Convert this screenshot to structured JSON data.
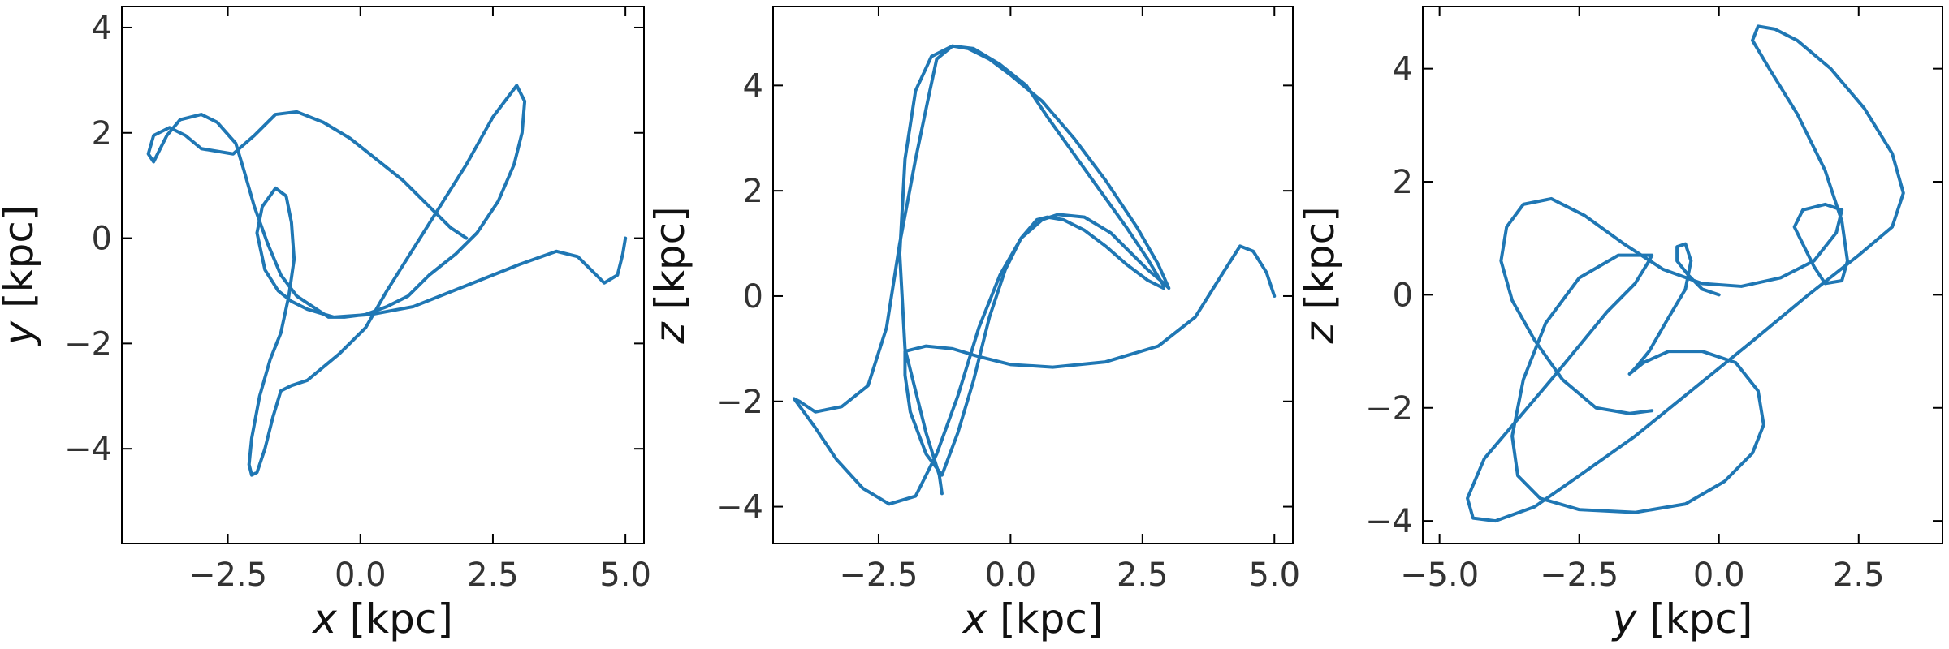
{
  "figure": {
    "line_color": "#1f77b4"
  },
  "chart_data": [
    {
      "type": "line",
      "xlabel": {
        "var": "x",
        "unit": " [kpc]"
      },
      "ylabel": {
        "var": "y",
        "unit": " [kpc]"
      },
      "xlim": [
        -4.5,
        5.35
      ],
      "ylim": [
        -5.8,
        4.4
      ],
      "xticks": [
        -2.5,
        0.0,
        2.5,
        5.0
      ],
      "xtick_labels": [
        "−2.5",
        "0.0",
        "2.5",
        "5.0"
      ],
      "yticks": [
        -4,
        -2,
        0,
        2,
        4
      ],
      "ytick_labels": [
        "−4",
        "−2",
        "0",
        "2",
        "4"
      ],
      "minor_xticks": [],
      "minor_yticks": [],
      "grid": false,
      "series": [
        {
          "x": [
            5.0,
            4.95,
            4.85,
            4.6,
            4.1,
            3.7,
            3.0,
            2.0,
            1.0,
            0.2,
            -0.5,
            -1.0,
            -1.3,
            -1.55,
            -1.8,
            -1.95,
            -1.85,
            -1.6,
            -1.4,
            -1.3,
            -1.25,
            -1.35,
            -1.5,
            -1.7,
            -1.9,
            -2.05,
            -2.1,
            -2.05,
            -1.95,
            -1.8,
            -1.65,
            -1.5,
            -1.3,
            -1.0,
            -0.4,
            0.1,
            0.5,
            1.0,
            1.5,
            2.0,
            2.5,
            2.95,
            3.1,
            3.05,
            2.9,
            2.6,
            2.2,
            1.8,
            1.3,
            0.9,
            0.5,
            0.1,
            -0.3,
            -0.6,
            -0.9,
            -1.2,
            -1.5,
            -1.75,
            -2.0,
            -2.2,
            -2.35,
            -2.7,
            -3.0,
            -3.4,
            -3.65,
            -3.9,
            -4.0,
            -3.9,
            -3.6,
            -3.3,
            -3.0,
            -2.4,
            -2.0,
            -1.6,
            -1.2,
            -0.7,
            -0.2,
            0.3,
            0.8,
            1.3,
            1.7,
            2.0
          ],
          "y": [
            0.0,
            -0.3,
            -0.7,
            -0.85,
            -0.35,
            -0.25,
            -0.5,
            -0.9,
            -1.3,
            -1.45,
            -1.5,
            -1.35,
            -1.2,
            -1.0,
            -0.6,
            0.1,
            0.6,
            0.95,
            0.8,
            0.3,
            -0.4,
            -1.1,
            -1.8,
            -2.3,
            -3.0,
            -3.8,
            -4.3,
            -4.5,
            -4.45,
            -4.0,
            -3.4,
            -2.9,
            -2.8,
            -2.7,
            -2.2,
            -1.7,
            -1.0,
            -0.2,
            0.6,
            1.4,
            2.3,
            2.9,
            2.6,
            2.0,
            1.4,
            0.7,
            0.1,
            -0.3,
            -0.7,
            -1.1,
            -1.3,
            -1.45,
            -1.5,
            -1.5,
            -1.3,
            -1.1,
            -0.7,
            -0.1,
            0.6,
            1.3,
            1.8,
            2.2,
            2.35,
            2.25,
            1.95,
            1.45,
            1.6,
            1.95,
            2.1,
            1.95,
            1.7,
            1.6,
            1.95,
            2.35,
            2.4,
            2.2,
            1.9,
            1.5,
            1.1,
            0.6,
            0.2,
            0.0
          ]
        }
      ]
    },
    {
      "type": "line",
      "xlabel": {
        "var": "x",
        "unit": " [kpc]"
      },
      "ylabel": {
        "var": "z",
        "unit": " [kpc]"
      },
      "xlim": [
        -4.5,
        5.35
      ],
      "ylim": [
        -4.7,
        5.5
      ],
      "xticks": [
        -2.5,
        0.0,
        2.5,
        5.0
      ],
      "xtick_labels": [
        "−2.5",
        "0.0",
        "2.5",
        "5.0"
      ],
      "yticks": [
        -4,
        -2,
        0,
        2,
        4
      ],
      "ytick_labels": [
        "−4",
        "−2",
        "0",
        "2",
        "4"
      ],
      "minor_xticks": [],
      "minor_yticks": [],
      "grid": false,
      "series": [
        {
          "x": [
            5.0,
            4.85,
            4.6,
            4.35,
            4.0,
            3.5,
            2.8,
            1.8,
            0.8,
            0.0,
            -0.6,
            -1.1,
            -1.6,
            -2.0,
            -2.0,
            -1.9,
            -1.6,
            -1.3,
            -1.0,
            -0.7,
            -0.4,
            -0.1,
            0.2,
            0.5,
            0.7,
            1.0,
            1.4,
            1.8,
            2.2,
            2.6,
            2.9,
            2.9,
            2.6,
            2.2,
            1.7,
            1.2,
            0.7,
            0.3,
            -0.2,
            -0.7,
            -1.1,
            -1.4,
            -1.55,
            -1.8,
            -2.1,
            -2.35,
            -2.7,
            -3.2,
            -3.7,
            -4.0,
            -4.1,
            -3.7,
            -3.3,
            -2.8,
            -2.3,
            -1.8,
            -1.4,
            -1.0,
            -0.6,
            -0.2,
            0.2,
            0.6,
            0.9,
            1.4,
            1.9,
            2.3,
            2.6,
            2.9,
            3.0,
            2.8,
            2.4,
            1.8,
            1.2,
            0.6,
            0.0,
            -0.4,
            -0.8,
            -1.1,
            -1.5,
            -1.8,
            -2.0,
            -2.1,
            -2.0,
            -1.6,
            -1.35,
            -1.3
          ],
          "y": [
            0.0,
            0.45,
            0.85,
            0.95,
            0.4,
            -0.4,
            -0.95,
            -1.25,
            -1.35,
            -1.3,
            -1.15,
            -1.0,
            -0.95,
            -1.05,
            -1.5,
            -2.2,
            -3.0,
            -3.4,
            -2.6,
            -1.6,
            -0.4,
            0.5,
            1.1,
            1.45,
            1.5,
            1.45,
            1.25,
            0.95,
            0.6,
            0.3,
            0.15,
            0.2,
            0.7,
            1.3,
            2.0,
            2.7,
            3.4,
            4.0,
            4.4,
            4.7,
            4.75,
            4.5,
            3.8,
            2.6,
            1.0,
            -0.6,
            -1.7,
            -2.1,
            -2.2,
            -2.0,
            -1.95,
            -2.5,
            -3.1,
            -3.65,
            -3.95,
            -3.8,
            -3.0,
            -1.9,
            -0.6,
            0.4,
            1.1,
            1.45,
            1.55,
            1.5,
            1.2,
            0.8,
            0.5,
            0.25,
            0.15,
            0.6,
            1.3,
            2.2,
            3.0,
            3.7,
            4.2,
            4.5,
            4.7,
            4.75,
            4.55,
            3.9,
            2.6,
            0.8,
            -1.0,
            -2.6,
            -3.4,
            -3.75
          ]
        }
      ]
    },
    {
      "type": "line",
      "xlabel": {
        "var": "y",
        "unit": " [kpc]"
      },
      "ylabel": {
        "var": "z",
        "unit": " [kpc]"
      },
      "xlim": [
        -5.3,
        4.0
      ],
      "ylim": [
        -4.4,
        5.1
      ],
      "xticks": [
        -5.0,
        -2.5,
        0.0,
        2.5
      ],
      "xtick_labels": [
        "−5.0",
        "−2.5",
        "0.0",
        "2.5"
      ],
      "yticks": [
        -4,
        -2,
        0,
        2,
        4
      ],
      "ytick_labels": [
        "−4",
        "−2",
        "0",
        "2",
        "4"
      ],
      "minor_xticks": [],
      "minor_yticks": [],
      "grid": false,
      "series": [
        {
          "x": [
            0.0,
            -0.3,
            -0.55,
            -0.75,
            -0.75,
            -0.6,
            -0.5,
            -0.6,
            -0.9,
            -1.25,
            -1.5,
            -1.6,
            -1.35,
            -0.9,
            -0.3,
            0.3,
            0.7,
            0.8,
            0.6,
            0.1,
            -0.6,
            -1.5,
            -2.5,
            -3.2,
            -3.6,
            -3.7,
            -3.5,
            -3.1,
            -2.5,
            -1.8,
            -1.2,
            -1.25,
            -1.5,
            -2.0,
            -2.5,
            -3.0,
            -3.6,
            -4.2,
            -4.5,
            -4.4,
            -4.0,
            -3.3,
            -2.5,
            -1.5,
            -0.5,
            0.5,
            1.6,
            2.5,
            3.1,
            3.3,
            3.1,
            2.6,
            2.0,
            1.4,
            1.0,
            0.7,
            0.6,
            0.9,
            1.4,
            1.9,
            2.2,
            2.3,
            2.2,
            1.9,
            1.7,
            1.5,
            1.35,
            1.5,
            1.9,
            2.2,
            2.1,
            1.7,
            1.1,
            0.4,
            -0.3,
            -1.0,
            -1.7,
            -2.4,
            -3.0,
            -3.5,
            -3.8,
            -3.9,
            -3.7,
            -3.3,
            -2.8,
            -2.2,
            -1.6,
            -1.2
          ],
          "y": [
            0.0,
            0.1,
            0.35,
            0.6,
            0.85,
            0.9,
            0.6,
            0.1,
            -0.4,
            -1.0,
            -1.3,
            -1.4,
            -1.2,
            -1.0,
            -1.0,
            -1.2,
            -1.7,
            -2.3,
            -2.8,
            -3.3,
            -3.7,
            -3.85,
            -3.8,
            -3.6,
            -3.2,
            -2.5,
            -1.5,
            -0.5,
            0.3,
            0.7,
            0.7,
            0.6,
            0.2,
            -0.3,
            -0.9,
            -1.5,
            -2.2,
            -2.9,
            -3.6,
            -3.95,
            -4.0,
            -3.75,
            -3.2,
            -2.5,
            -1.7,
            -0.9,
            0.0,
            0.7,
            1.2,
            1.8,
            2.5,
            3.3,
            4.0,
            4.5,
            4.7,
            4.75,
            4.5,
            4.0,
            3.2,
            2.2,
            1.3,
            0.6,
            0.25,
            0.2,
            0.5,
            0.9,
            1.2,
            1.5,
            1.6,
            1.5,
            1.1,
            0.6,
            0.3,
            0.15,
            0.2,
            0.45,
            0.9,
            1.4,
            1.7,
            1.6,
            1.2,
            0.6,
            -0.1,
            -0.8,
            -1.5,
            -2.0,
            -2.1,
            -2.05
          ]
        }
      ]
    }
  ]
}
